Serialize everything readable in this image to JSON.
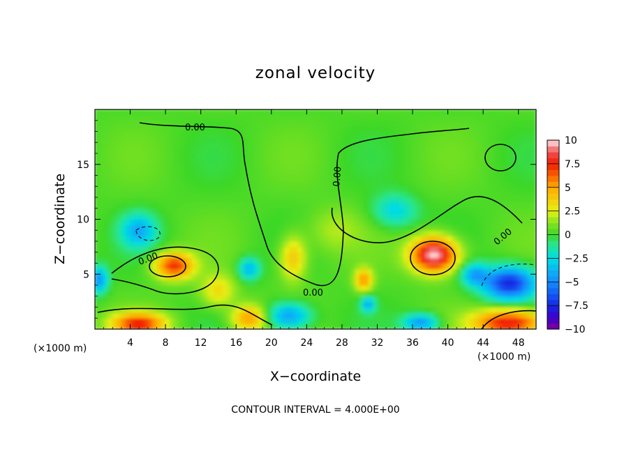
{
  "chart_data": {
    "type": "heatmap",
    "title": "zonal velocity",
    "xlabel": "X−coordinate",
    "ylabel": "Z−coordinate",
    "x_unit_left": "(×1000 m)",
    "x_unit_right": "(×1000 m)",
    "xlim": [
      0,
      50
    ],
    "ylim": [
      0,
      20
    ],
    "x_ticks": [
      4,
      8,
      12,
      16,
      20,
      24,
      28,
      32,
      36,
      40,
      44,
      48
    ],
    "y_ticks": [
      5,
      10,
      15
    ],
    "colorbar": {
      "ticks": [
        10,
        7.5,
        5,
        2.5,
        0,
        -2.5,
        -5,
        -7.5,
        -10
      ],
      "tick_labels": [
        "10",
        "7.5",
        "5",
        "2.5",
        "0",
        "−2.5",
        "−5",
        "−7.5",
        "−10"
      ],
      "range": [
        -10,
        10
      ]
    },
    "contour_labels": [
      "0.00",
      "0.00",
      "0.00",
      "0.00",
      "0.00"
    ],
    "contour_interval_text": "CONTOUR INTERVAL = 4.000E+00",
    "features": [
      {
        "x": 9,
        "z": 5.8,
        "value": 7,
        "sx": 2.2,
        "sz": 1.2
      },
      {
        "x": 38.5,
        "z": 6.8,
        "value": 10,
        "sx": 2.6,
        "sz": 1.6
      },
      {
        "x": 22.5,
        "z": 6.5,
        "value": 4,
        "sx": 1.5,
        "sz": 2.0
      },
      {
        "x": 30.5,
        "z": 4.5,
        "value": 5,
        "sx": 1.0,
        "sz": 1.0
      },
      {
        "x": 17.5,
        "z": 1.0,
        "value": 5,
        "sx": 2.0,
        "sz": 1.2
      },
      {
        "x": 5,
        "z": 0.5,
        "value": 7,
        "sx": 3.0,
        "sz": 1.0
      },
      {
        "x": 47,
        "z": 0.6,
        "value": 8,
        "sx": 4.0,
        "sz": 1.2
      },
      {
        "x": 47,
        "z": 4.2,
        "value": -8,
        "sx": 3.0,
        "sz": 1.5
      },
      {
        "x": 43,
        "z": 5.0,
        "value": -4,
        "sx": 1.5,
        "sz": 1.0
      },
      {
        "x": 0.5,
        "z": 4.5,
        "value": -5,
        "sx": 1.0,
        "sz": 1.2
      },
      {
        "x": 17.5,
        "z": 5.5,
        "value": -4,
        "sx": 1.2,
        "sz": 1.0
      },
      {
        "x": 5,
        "z": 9.0,
        "value": -4,
        "sx": 2.0,
        "sz": 1.5
      },
      {
        "x": 34,
        "z": 10.8,
        "value": -3,
        "sx": 2.5,
        "sz": 1.5
      },
      {
        "x": 22,
        "z": 1.2,
        "value": -5,
        "sx": 2.5,
        "sz": 1.2
      },
      {
        "x": 37,
        "z": 0.6,
        "value": -5,
        "sx": 2.0,
        "sz": 0.8
      },
      {
        "x": 31,
        "z": 2.3,
        "value": -4,
        "sx": 0.8,
        "sz": 0.7
      },
      {
        "x": 27,
        "z": 9.0,
        "value": 1.5,
        "sx": 3.0,
        "sz": 2.0
      },
      {
        "x": 14,
        "z": 3.5,
        "value": 3,
        "sx": 2.0,
        "sz": 1.5
      }
    ]
  }
}
